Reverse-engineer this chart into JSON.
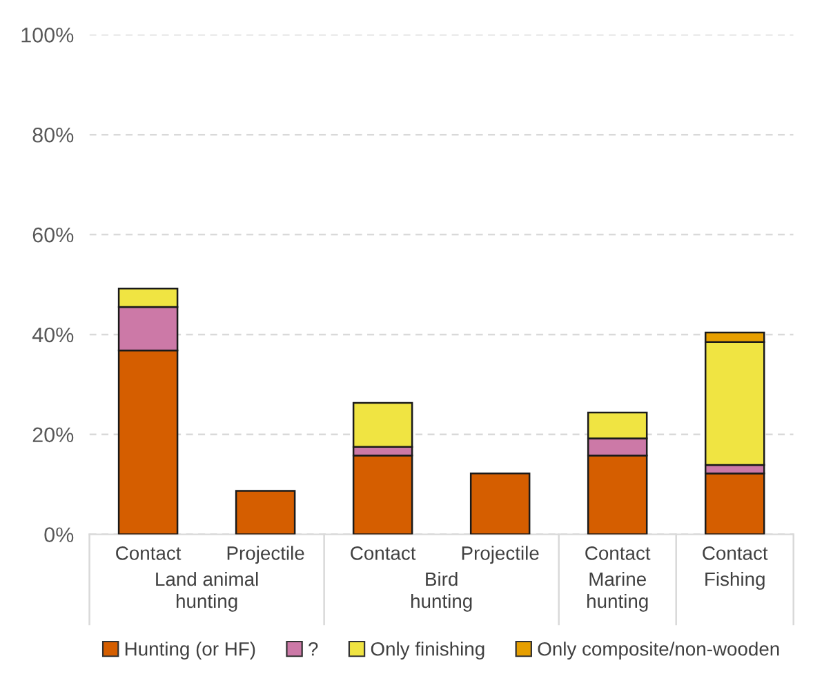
{
  "chart_data": {
    "type": "bar",
    "stacked": true,
    "categories": [
      "Contact",
      "Projectile",
      "Contact",
      "Projectile",
      "Contact",
      "Contact"
    ],
    "series": [
      {
        "name": "Hunting (or HF)",
        "color": "#d55e00",
        "values": [
          36.8,
          8.7,
          15.8,
          12.2,
          15.8,
          12.2
        ]
      },
      {
        "name": "?",
        "color": "#cc79a7",
        "values": [
          8.7,
          null,
          1.7,
          null,
          3.4,
          1.7
        ]
      },
      {
        "name": "Only finishing",
        "color": "#f0e442",
        "values": [
          3.7,
          null,
          8.8,
          null,
          5.2,
          24.6
        ]
      },
      {
        "name": "Only composite/non-wooden",
        "color": "#e69f00",
        "values": [
          null,
          null,
          null,
          null,
          null,
          1.9
        ]
      }
    ],
    "annotations": [
      "Land animal\nhunting",
      "Bird\nhunting",
      "Marine\nhunting",
      "Fishing"
    ],
    "ylim": [
      0,
      100
    ],
    "yticks": [
      {
        "value": 0,
        "label": "0%"
      },
      {
        "value": 20,
        "label": "20%"
      },
      {
        "value": 40,
        "label": "40%"
      },
      {
        "value": 60,
        "label": "60%"
      },
      {
        "value": 80,
        "label": "80%"
      },
      {
        "value": 100,
        "label": "100%"
      }
    ],
    "grid": "y",
    "legend": "bottom"
  }
}
